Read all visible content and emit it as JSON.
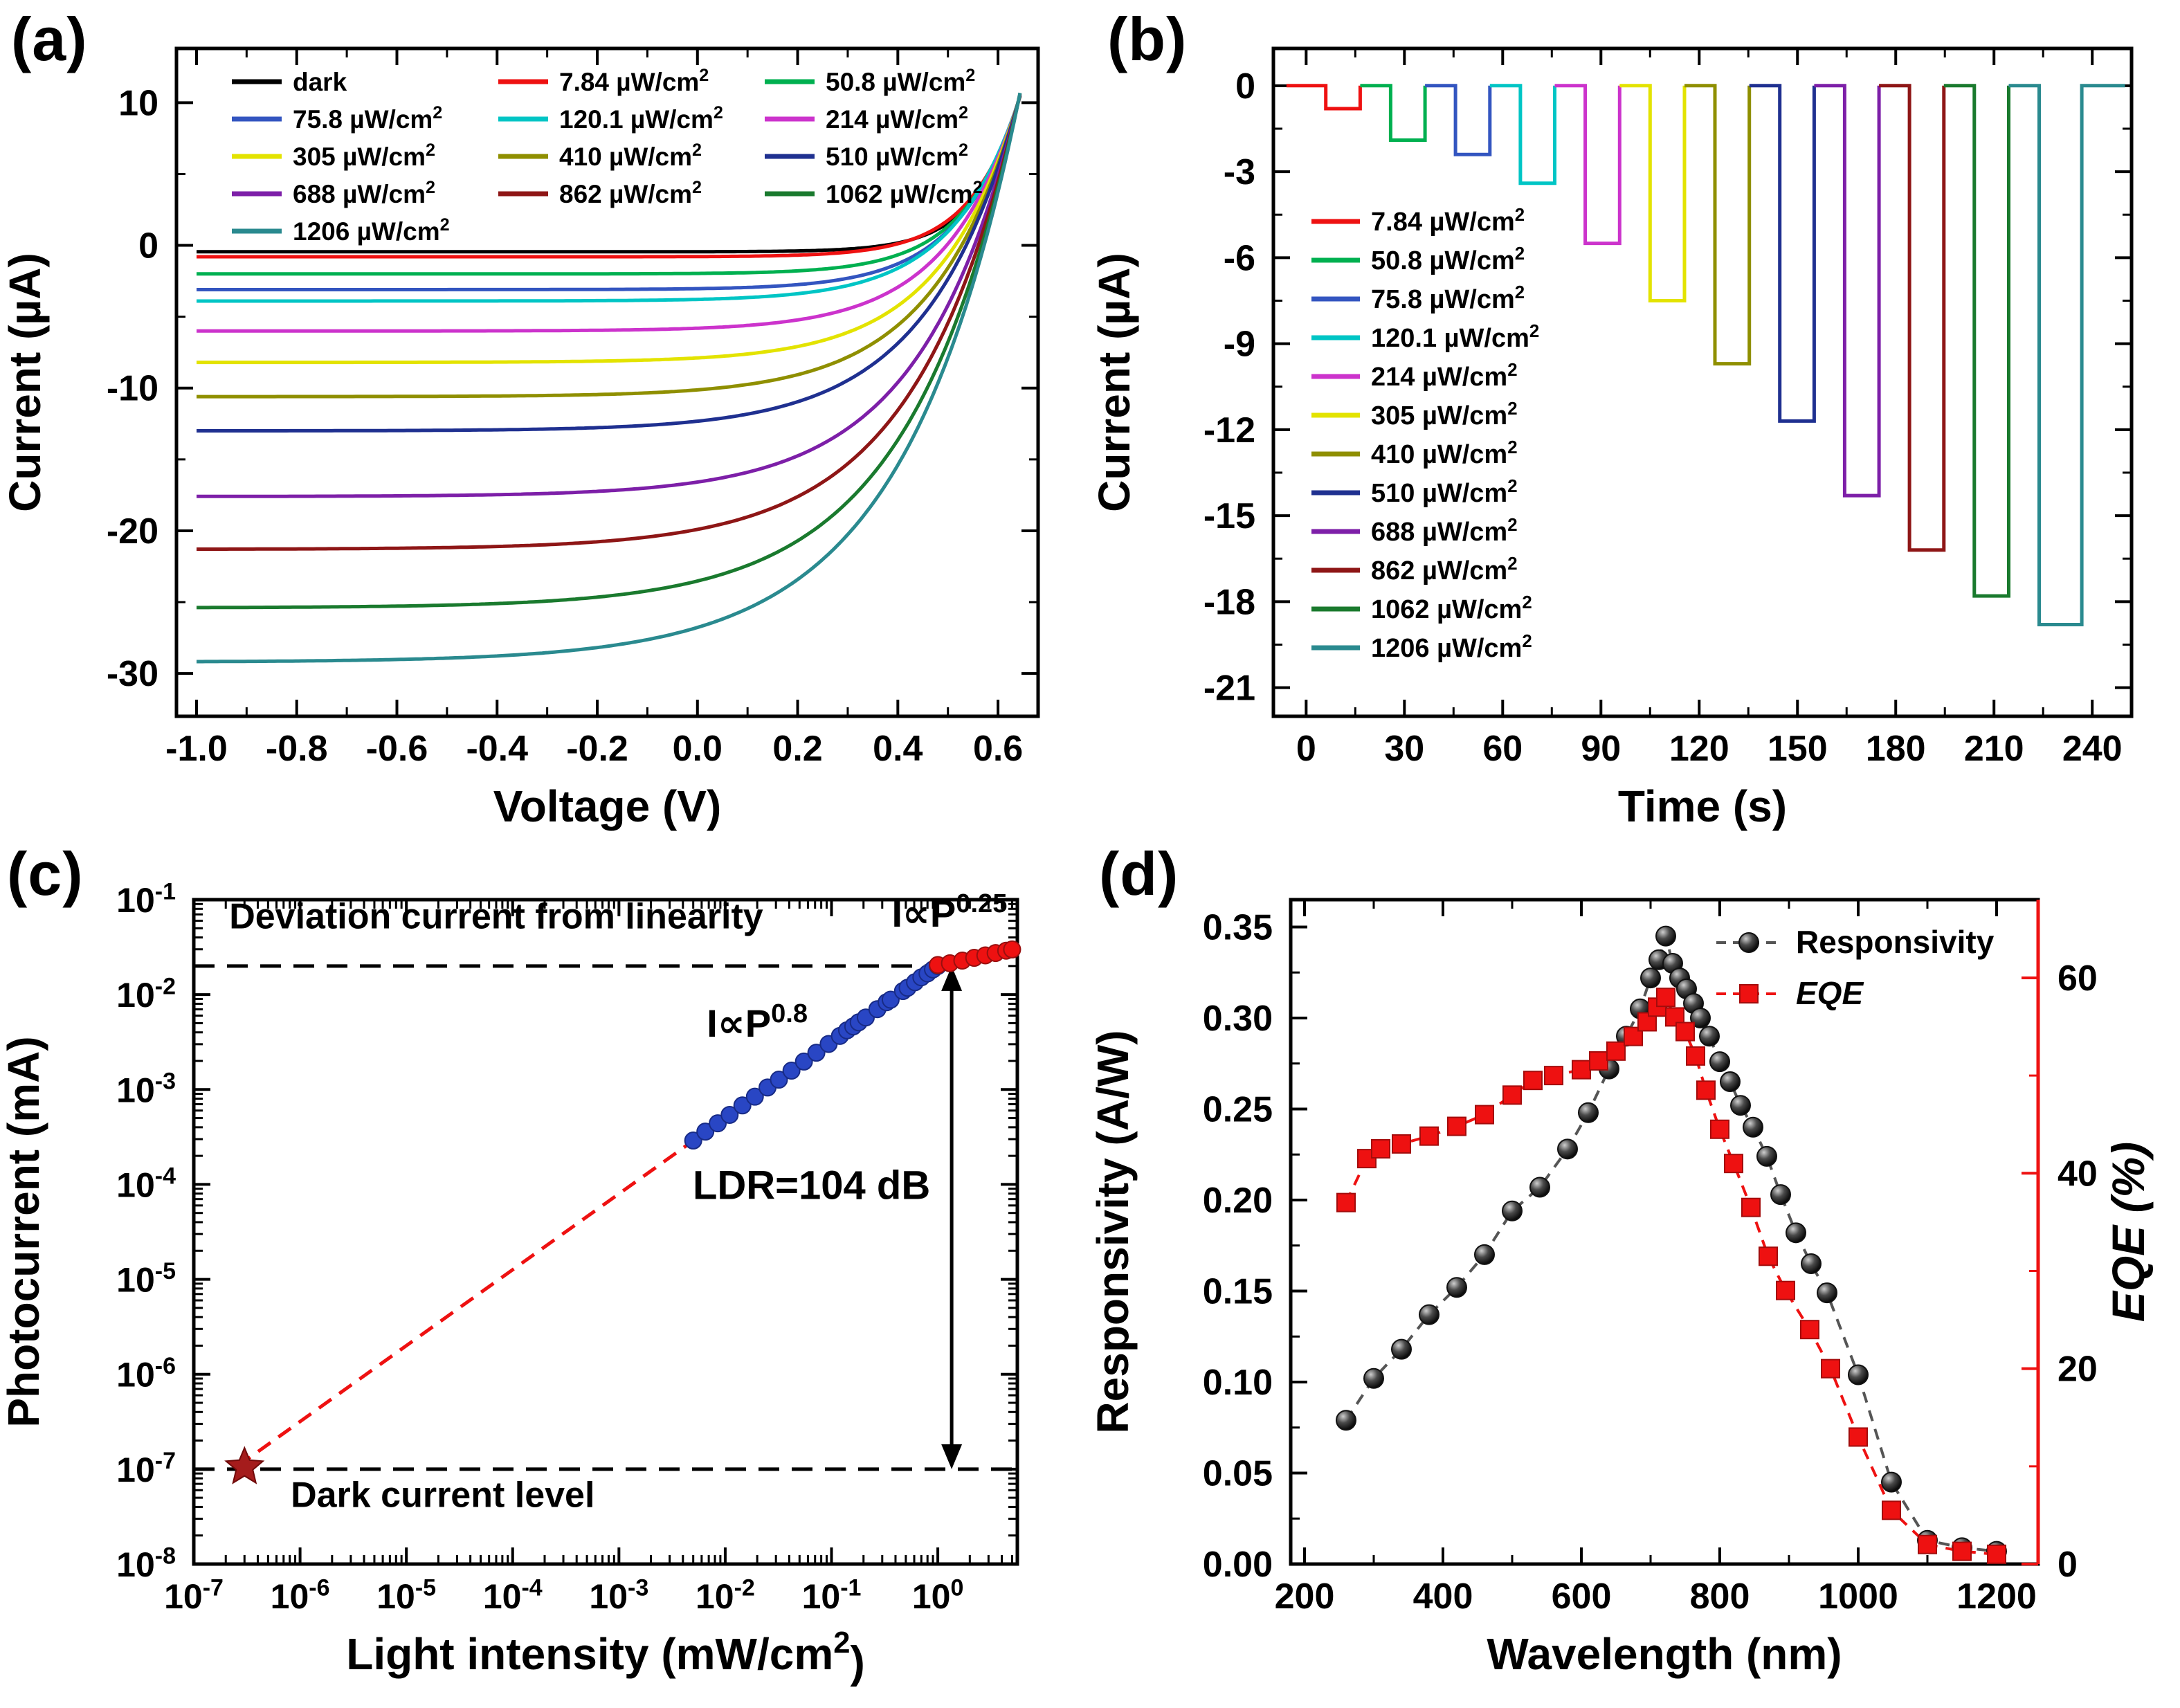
{
  "chart_data": {
    "panels": {
      "a": {
        "type": "line",
        "tag": "(a)",
        "xlabel": "Voltage (V)",
        "ylabel": "Current (µA)",
        "xlim": [
          -1.04,
          0.68
        ],
        "ylim": [
          -33,
          13.8
        ],
        "xticks": [
          -1.0,
          -0.8,
          -0.6,
          -0.4,
          -0.2,
          0.0,
          0.2,
          0.4,
          0.6
        ],
        "xticklabels": [
          "-1.0",
          "-0.8",
          "-0.6",
          "-0.4",
          "-0.2",
          "0.0",
          "0.2",
          "0.4",
          "0.6"
        ],
        "yticks": [
          -30,
          -20,
          -10,
          0,
          10
        ],
        "yticklabels": [
          "-30",
          "-20",
          "-10",
          "0",
          "10"
        ],
        "convergence": {
          "v": 0.64,
          "i": 10
        },
        "series": [
          {
            "label": "dark",
            "color": "#000000",
            "isat": -0.45
          },
          {
            "label": "7.84 µW/cm^{2}",
            "color": "#EE1111",
            "isat": -0.8
          },
          {
            "label": "50.8 µW/cm^{2}",
            "color": "#00B050",
            "isat": -2.0
          },
          {
            "label": "75.8 µW/cm^{2}",
            "color": "#3355C0",
            "isat": -3.1
          },
          {
            "label": "120.1 µW/cm^{2}",
            "color": "#00C5C5",
            "isat": -3.9
          },
          {
            "label": "214 µW/cm^{2}",
            "color": "#CC33CC",
            "isat": -6.0
          },
          {
            "label": "305 µW/cm^{2}",
            "color": "#E3E300",
            "isat": -8.2
          },
          {
            "label": "410 µW/cm^{2}",
            "color": "#8F8F00",
            "isat": -10.6
          },
          {
            "label": "510 µW/cm^{2}",
            "color": "#1F3090",
            "isat": -13.0
          },
          {
            "label": "688 µW/cm^{2}",
            "color": "#7D1FA8",
            "isat": -17.6
          },
          {
            "label": "862 µW/cm^{2}",
            "color": "#8E1616",
            "isat": -21.3
          },
          {
            "label": "1062 µW/cm^{2}",
            "color": "#1A7A2E",
            "isat": -25.4
          },
          {
            "label": "1206 µW/cm^{2}",
            "color": "#2A8A8F",
            "isat": -29.2
          }
        ]
      },
      "b": {
        "type": "line",
        "tag": "(b)",
        "xlabel": "Time (s)",
        "ylabel": "Current (µA)",
        "xlim": [
          -10,
          252
        ],
        "ylim": [
          -22,
          1.3
        ],
        "xticks": [
          0,
          30,
          60,
          90,
          120,
          150,
          180,
          210,
          240
        ],
        "xticklabels": [
          "0",
          "30",
          "60",
          "90",
          "120",
          "150",
          "180",
          "210",
          "240"
        ],
        "yticks": [
          -21,
          -18,
          -15,
          -12,
          -9,
          -6,
          -3,
          0
        ],
        "yticklabels": [
          "-21",
          "-18",
          "-15",
          "-12",
          "-9",
          "-6",
          "-3",
          "0"
        ],
        "pulse": {
          "start0": 6,
          "period": 19.8,
          "width": 10.5
        },
        "series": [
          {
            "label": "7.84 µW/cm^{2}",
            "color": "#EE1111",
            "depth": -0.8
          },
          {
            "label": "50.8 µW/cm^{2}",
            "color": "#00B050",
            "depth": -1.9
          },
          {
            "label": "75.8 µW/cm^{2}",
            "color": "#3355C0",
            "depth": -2.4
          },
          {
            "label": "120.1 µW/cm^{2}",
            "color": "#00C5C5",
            "depth": -3.4
          },
          {
            "label": "214 µW/cm^{2}",
            "color": "#CC33CC",
            "depth": -5.5
          },
          {
            "label": "305 µW/cm^{2}",
            "color": "#E3E300",
            "depth": -7.5
          },
          {
            "label": "410 µW/cm^{2}",
            "color": "#8F8F00",
            "depth": -9.7
          },
          {
            "label": "510 µW/cm^{2}",
            "color": "#1F3090",
            "depth": -11.7
          },
          {
            "label": "688 µW/cm^{2}",
            "color": "#7D1FA8",
            "depth": -14.3
          },
          {
            "label": "862 µW/cm^{2}",
            "color": "#8E1616",
            "depth": -16.2
          },
          {
            "label": "1062 µW/cm^{2}",
            "color": "#1A7A2E",
            "depth": -17.8
          },
          {
            "label": "1206 µW/cm^{2}",
            "color": "#2A8A8F",
            "depth": -18.8,
            "w": 13
          }
        ]
      },
      "c": {
        "type": "scatter",
        "tag": "(c)",
        "xlabel": "Light intensity (mW/cm^{2})",
        "ylabel": "Photocurrent (mA)",
        "xlog": true,
        "ylog": true,
        "xlim": [
          1e-07,
          5.6
        ],
        "ylim": [
          1e-08,
          0.1
        ],
        "xticks": [
          1e-07,
          1e-06,
          1e-05,
          0.0001,
          0.001,
          0.01,
          0.1,
          1
        ],
        "xticklabels": [
          "10^{-7}",
          "10^{-6}",
          "10^{-5}",
          "10^{-4}",
          "10^{-3}",
          "10^{-2}",
          "10^{-1}",
          "10^{0}"
        ],
        "yticks": [
          1e-08,
          1e-07,
          1e-06,
          1e-05,
          0.0001,
          0.001,
          0.01,
          0.1
        ],
        "yticklabels": [
          "10^{-8}",
          "10^{-7}",
          "10^{-6}",
          "10^{-5}",
          "10^{-4}",
          "10^{-3}",
          "10^{-2}",
          "10^{-1}"
        ],
        "color_p08": "#2946C4",
        "color_p025": "#EE1111",
        "points_p08": [
          [
            0.005,
            0.00029
          ],
          [
            0.0065,
            0.00036
          ],
          [
            0.0085,
            0.00044
          ],
          [
            0.011,
            0.00054
          ],
          [
            0.0145,
            0.00068
          ],
          [
            0.019,
            0.00084
          ],
          [
            0.025,
            0.00105
          ],
          [
            0.032,
            0.00127
          ],
          [
            0.042,
            0.00158
          ],
          [
            0.055,
            0.00197
          ],
          [
            0.072,
            0.00244
          ],
          [
            0.094,
            0.00302
          ],
          [
            0.12,
            0.00367
          ],
          [
            0.14,
            0.0042
          ],
          [
            0.16,
            0.00462
          ],
          [
            0.18,
            0.0051
          ],
          [
            0.21,
            0.00574
          ],
          [
            0.27,
            0.00702
          ],
          [
            0.33,
            0.0083
          ],
          [
            0.36,
            0.00883
          ],
          [
            0.47,
            0.0109
          ],
          [
            0.52,
            0.0118
          ],
          [
            0.61,
            0.0135
          ],
          [
            0.7,
            0.0152
          ],
          [
            0.8,
            0.0167
          ],
          [
            0.9,
            0.0184
          ],
          [
            1.0,
            0.02
          ]
        ],
        "points_p025": [
          [
            1.0,
            0.0205
          ],
          [
            1.3,
            0.0214
          ],
          [
            1.7,
            0.0228
          ],
          [
            2.2,
            0.0244
          ],
          [
            2.8,
            0.0259
          ],
          [
            3.5,
            0.0274
          ],
          [
            4.4,
            0.029
          ],
          [
            5.0,
            0.0299
          ]
        ],
        "fit": {
          "x0": 2.6e-07,
          "y0": 1.08e-07,
          "xm": 1.0,
          "ym": 0.02,
          "x1": 5.0,
          "y1": 0.0299
        },
        "lines": {
          "top": {
            "y": 0.02,
            "x": [
              1e-07,
              1.35
            ]
          },
          "bottom": {
            "y": 1e-07,
            "x": [
              1e-07,
              5.4
            ]
          }
        },
        "star": [
          3e-07,
          1.05e-07
        ],
        "arrow": {
          "x": 1.35,
          "y": [
            0.02,
            1e-07
          ]
        },
        "annotations": [
          {
            "x": 7e-05,
            "y": 0.05,
            "text": "Deviation current from linearity",
            "color": "#000000",
            "anchor": "middle",
            "size": 52
          },
          {
            "x": 4.5,
            "y": 0.052,
            "text": "I∝P^{0.25}",
            "color": "#EE1111",
            "anchor": "end",
            "size": 56
          },
          {
            "x": 0.02,
            "y": 0.0036,
            "text": "I∝P^{0.8}",
            "color": "#2946C4",
            "anchor": "middle",
            "size": 56
          },
          {
            "x": 0.85,
            "y": 7e-05,
            "text": "LDR=104 dB",
            "color": "#000000",
            "anchor": "end",
            "size": 58
          },
          {
            "x": 2.2e-05,
            "y": 4e-08,
            "text": "Dark current level",
            "color": "#000000",
            "anchor": "middle",
            "size": 52
          }
        ]
      },
      "d": {
        "type": "line",
        "tag": "(d)",
        "xlabel": "Wavelength (nm)",
        "ylabel": "Responsivity (A/W)",
        "xlim": [
          180,
          1260
        ],
        "ylim": [
          0,
          0.365
        ],
        "xticks": [
          200,
          400,
          600,
          800,
          1000,
          1200
        ],
        "xticklabels": [
          "200",
          "400",
          "600",
          "800",
          "1000",
          "1200"
        ],
        "yticks": [
          0,
          0.05,
          0.1,
          0.15,
          0.2,
          0.25,
          0.3,
          0.35
        ],
        "yticklabels": [
          "0.00",
          "0.05",
          "0.10",
          "0.15",
          "0.20",
          "0.25",
          "0.30",
          "0.35"
        ],
        "right": {
          "label": "EQE (%)",
          "color": "#EE1111",
          "lim": [
            0,
            68
          ],
          "ticks": [
            0,
            20,
            40,
            60
          ],
          "ticklabels": [
            "0",
            "20",
            "40",
            "60"
          ]
        },
        "legend": [
          "Responsivity",
          "EQE"
        ],
        "responsivity": [
          [
            260,
            0.079
          ],
          [
            300,
            0.102
          ],
          [
            340,
            0.118
          ],
          [
            380,
            0.137
          ],
          [
            420,
            0.152
          ],
          [
            460,
            0.17
          ],
          [
            500,
            0.194
          ],
          [
            540,
            0.207
          ],
          [
            580,
            0.228
          ],
          [
            610,
            0.248
          ],
          [
            640,
            0.272
          ],
          [
            665,
            0.29
          ],
          [
            685,
            0.305
          ],
          [
            700,
            0.322
          ],
          [
            712,
            0.332
          ],
          [
            722,
            0.345
          ],
          [
            732,
            0.33
          ],
          [
            742,
            0.322
          ],
          [
            752,
            0.316
          ],
          [
            762,
            0.308
          ],
          [
            772,
            0.3
          ],
          [
            785,
            0.29
          ],
          [
            800,
            0.276
          ],
          [
            815,
            0.265
          ],
          [
            830,
            0.252
          ],
          [
            848,
            0.24
          ],
          [
            868,
            0.224
          ],
          [
            888,
            0.203
          ],
          [
            910,
            0.182
          ],
          [
            932,
            0.165
          ],
          [
            955,
            0.149
          ],
          [
            1000,
            0.104
          ],
          [
            1048,
            0.045
          ],
          [
            1100,
            0.013
          ],
          [
            1150,
            0.009
          ],
          [
            1200,
            0.007
          ]
        ],
        "eqe": [
          [
            260,
            37
          ],
          [
            290,
            41.5
          ],
          [
            310,
            42.5
          ],
          [
            340,
            43
          ],
          [
            380,
            43.8
          ],
          [
            420,
            44.8
          ],
          [
            460,
            46
          ],
          [
            500,
            48
          ],
          [
            530,
            49.5
          ],
          [
            560,
            50
          ],
          [
            600,
            50.6
          ],
          [
            625,
            51.5
          ],
          [
            650,
            52.5
          ],
          [
            675,
            54
          ],
          [
            695,
            55.5
          ],
          [
            710,
            57
          ],
          [
            722,
            58
          ],
          [
            735,
            56
          ],
          [
            750,
            54.5
          ],
          [
            765,
            52
          ],
          [
            780,
            48.5
          ],
          [
            800,
            44.5
          ],
          [
            820,
            41
          ],
          [
            845,
            36.5
          ],
          [
            870,
            31.5
          ],
          [
            895,
            28
          ],
          [
            930,
            24
          ],
          [
            960,
            20
          ],
          [
            1000,
            13
          ],
          [
            1048,
            5.5
          ],
          [
            1100,
            2
          ],
          [
            1150,
            1.3
          ],
          [
            1200,
            1
          ]
        ]
      }
    }
  }
}
